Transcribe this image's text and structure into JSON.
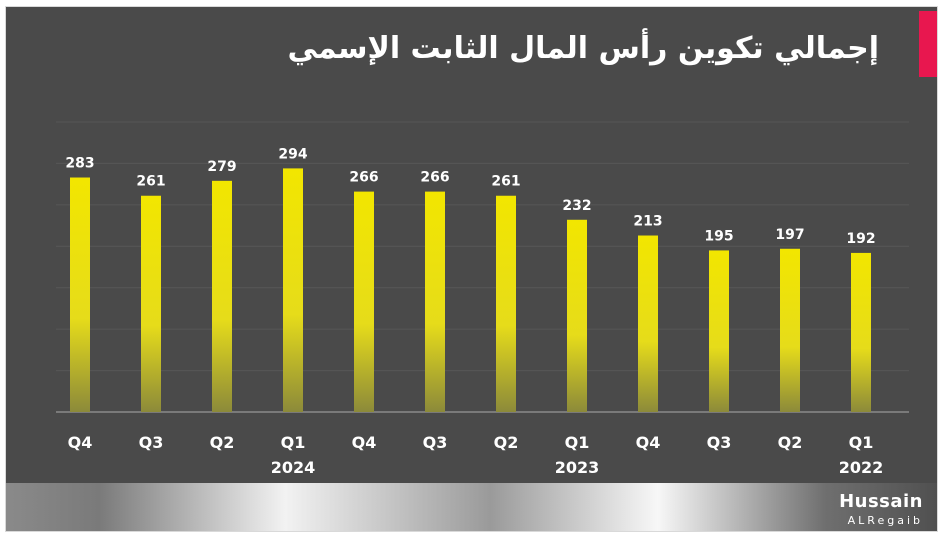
{
  "title": "إجمالي تكوين رأس المال الثابت الإسمي",
  "brand": {
    "name": "Hussain",
    "sub": "ALRegaib"
  },
  "colors": {
    "background": "#4a4a4a",
    "bar_top": "#f2e600",
    "bar_bottom": "#8c8a3a",
    "accent": "#e8174f",
    "text": "#ffffff"
  },
  "chart_data": {
    "type": "bar",
    "title": "إجمالي تكوين رأس المال الثابت الإسمي",
    "categories": [
      "Q4",
      "Q3",
      "Q2",
      "Q1",
      "Q4",
      "Q3",
      "Q2",
      "Q1",
      "Q4",
      "Q3",
      "Q2",
      "Q1"
    ],
    "values": [
      283,
      261,
      279,
      294,
      266,
      266,
      261,
      232,
      213,
      195,
      197,
      192
    ],
    "year_labels": [
      {
        "label": "2024",
        "index": 3
      },
      {
        "label": "2023",
        "index": 7
      },
      {
        "label": "2022",
        "index": 11
      }
    ],
    "ylim": [
      0,
      350
    ],
    "grid": true,
    "data_labels": true,
    "xlabel": "",
    "ylabel": ""
  }
}
